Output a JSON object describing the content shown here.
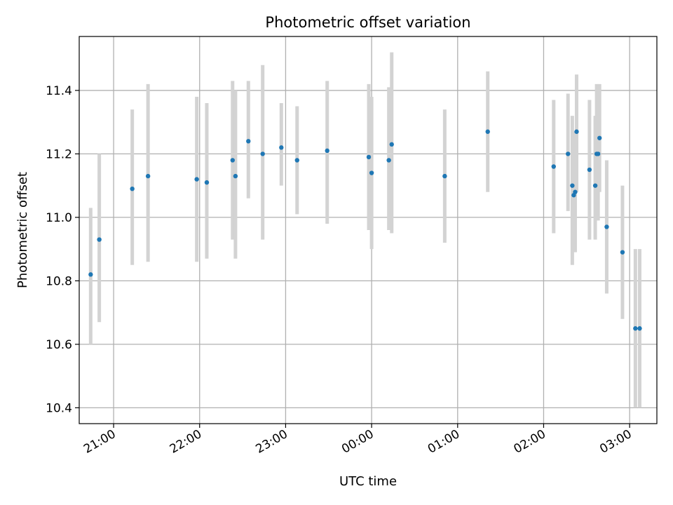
{
  "chart_data": {
    "type": "scatter",
    "title": "Photometric offset variation",
    "xlabel": "UTC time",
    "ylabel": "Photometric offset",
    "x_ticks": [
      "21:00",
      "22:00",
      "23:00",
      "00:00",
      "01:00",
      "02:00",
      "03:00"
    ],
    "y_ticks": [
      "10.4",
      "10.6",
      "10.8",
      "11.0",
      "11.2",
      "11.4"
    ],
    "xlim": [
      "20:36",
      "03:19"
    ],
    "ylim": [
      10.35,
      11.57
    ],
    "grid": true,
    "colors": {
      "point": "#1f77b4",
      "errorbar": "#d3d3d3",
      "grid": "#b0b0b0",
      "axes": "#000000"
    },
    "series": [
      {
        "x": [
          "20:44",
          "20:50",
          "21:13",
          "21:24",
          "21:58",
          "22:05",
          "22:23",
          "22:25",
          "22:34",
          "22:44",
          "22:57",
          "23:08",
          "23:29",
          "23:58",
          "00:00",
          "00:12",
          "00:14",
          "00:51",
          "01:21",
          "02:07",
          "02:17",
          "02:20",
          "02:21",
          "02:22",
          "02:23",
          "02:32",
          "02:36",
          "02:37",
          "02:38",
          "02:39",
          "02:44",
          "02:55",
          "03:04",
          "03:07"
        ],
        "y": [
          10.82,
          10.93,
          11.09,
          11.13,
          11.12,
          11.11,
          11.18,
          11.13,
          11.24,
          11.2,
          11.22,
          11.18,
          11.21,
          11.19,
          11.14,
          11.18,
          11.23,
          11.13,
          11.27,
          11.16,
          11.2,
          11.1,
          11.07,
          11.08,
          11.27,
          11.15,
          11.1,
          11.2,
          11.2,
          11.25,
          10.97,
          10.89,
          10.65,
          10.65
        ],
        "yerr_low": [
          10.6,
          10.67,
          10.85,
          10.86,
          10.86,
          10.87,
          10.93,
          10.87,
          11.06,
          10.93,
          11.1,
          11.01,
          10.98,
          10.96,
          10.9,
          10.96,
          10.95,
          10.92,
          11.08,
          10.95,
          11.02,
          10.85,
          10.95,
          10.89,
          11.08,
          10.93,
          10.93,
          11.02,
          10.99,
          11.08,
          10.76,
          10.68,
          10.4,
          10.4
        ],
        "yerr_high": [
          11.03,
          11.2,
          11.34,
          11.42,
          11.38,
          11.36,
          11.43,
          11.4,
          11.43,
          11.48,
          11.36,
          11.35,
          11.43,
          11.42,
          11.38,
          11.41,
          11.52,
          11.34,
          11.46,
          11.37,
          11.39,
          11.32,
          11.27,
          11.27,
          11.45,
          11.37,
          11.32,
          11.42,
          11.41,
          11.42,
          11.18,
          11.1,
          10.9,
          10.9
        ]
      }
    ]
  }
}
